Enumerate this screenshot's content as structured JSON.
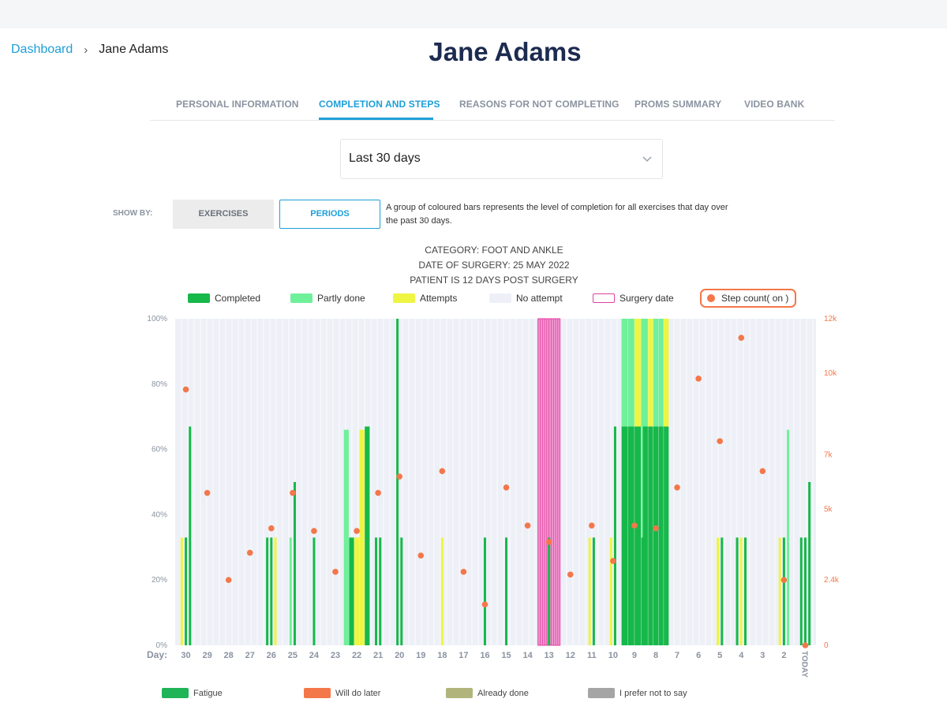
{
  "breadcrumb": {
    "home": "Dashboard",
    "separator": "›",
    "current": "Jane Adams"
  },
  "page_title": "Jane Adams",
  "tabs": [
    {
      "label": "PERSONAL INFORMATION",
      "active": false
    },
    {
      "label": "COMPLETION AND STEPS",
      "active": true
    },
    {
      "label": "REASONS FOR NOT COMPLETING",
      "active": false
    },
    {
      "label": "PROMS SUMMARY",
      "active": false
    },
    {
      "label": "VIDEO BANK",
      "active": false
    }
  ],
  "period_select": {
    "value": "Last 30 days",
    "icon": "chevron-down-icon"
  },
  "show_by": {
    "label": "SHOW BY:",
    "exercises_label": "EXERCISES",
    "periods_label": "PERIODS",
    "selected": "PERIODS",
    "description": "A group of coloured bars represents the level of completion for all exercises that day over the past 30 days."
  },
  "patient_info": {
    "category": "CATEGORY: FOOT AND ANKLE",
    "surgery_date": "DATE OF SURGERY: 25 MAY 2022",
    "post_surgery": "PATIENT IS 12 DAYS POST SURGERY"
  },
  "legend": {
    "completed": "Completed",
    "partly_done": "Partly done",
    "attempts": "Attempts",
    "no_attempt": "No attempt",
    "surgery_date": "Surgery date",
    "step_count": "Step count( on )"
  },
  "colors": {
    "completed": "#16b84a",
    "partly_done": "#6ff09a",
    "attempts": "#eef542",
    "no_attempt": "#eef0f7",
    "surgery": "#e23fa0",
    "surgery_fill": "#f099d0",
    "step": "#f4774a",
    "accent": "#1e9fd8",
    "title": "#1c2b4f"
  },
  "chart_data": {
    "type": "bar",
    "y_left": {
      "ylim": [
        0,
        100
      ],
      "ticks": [
        "0%",
        "20%",
        "40%",
        "60%",
        "80%",
        "100%"
      ]
    },
    "y_right": {
      "ylim": [
        0,
        12000
      ],
      "tick_values": [
        0,
        2400,
        5000,
        7000,
        10000,
        12000
      ],
      "ticks": [
        "0",
        "2.4k",
        "5k",
        "7k",
        "10k",
        "12k"
      ]
    },
    "x_label": "Day:",
    "days": [
      "30",
      "29",
      "28",
      "27",
      "26",
      "25",
      "24",
      "23",
      "22",
      "21",
      "20",
      "19",
      "18",
      "17",
      "16",
      "15",
      "14",
      "13",
      "12",
      "11",
      "10",
      "9",
      "8",
      "7",
      "6",
      "5",
      "4",
      "3",
      "2",
      "TODAY"
    ],
    "surgery_day": "13",
    "bars": [
      [
        {
          "s": "attempts",
          "v": 33
        },
        {
          "s": "completed",
          "v": 33
        },
        {
          "s": "completed",
          "v": 67
        }
      ],
      [],
      [],
      [],
      [
        {
          "s": "completed",
          "v": 33
        },
        {
          "s": "completed",
          "v": 33
        },
        {
          "s": "attempts",
          "v": 33
        }
      ],
      [
        {
          "s": "partly",
          "v": 33
        },
        {
          "s": "completed",
          "v": 50
        }
      ],
      [
        {
          "s": "completed",
          "v": 33
        }
      ],
      [],
      [
        {
          "s": "partly",
          "v": 66
        },
        {
          "s": "completed",
          "v": 33
        },
        {
          "s": "attempts",
          "v": 33
        },
        {
          "s": "attempts",
          "v": 66
        },
        {
          "s": "completed",
          "v": 67
        }
      ],
      [
        {
          "s": "completed",
          "v": 33
        },
        {
          "s": "completed",
          "v": 33
        }
      ],
      [
        {
          "s": "completed",
          "v": 100
        },
        {
          "s": "completed",
          "v": 33
        }
      ],
      [],
      [
        {
          "s": "attempts",
          "v": 33
        }
      ],
      [],
      [
        {
          "s": "completed",
          "v": 33
        }
      ],
      [
        {
          "s": "completed",
          "v": 33
        }
      ],
      [],
      [
        {
          "s": "completed",
          "v": 33
        }
      ],
      [],
      [
        {
          "s": "attempts",
          "v": 33
        },
        {
          "s": "completed",
          "v": 33
        }
      ],
      [
        {
          "s": "attempts",
          "v": 33
        },
        {
          "s": "completed",
          "v": 67
        }
      ],
      [
        {
          "s": "completed",
          "v": 67,
          "top": "partly",
          "tv": 100
        },
        {
          "s": "completed",
          "v": 67,
          "top": "partly",
          "tv": 100
        },
        {
          "s": "completed",
          "v": 67,
          "top": "attempts",
          "tv": 100
        },
        {
          "s": "completed",
          "v": 33,
          "top": "partly",
          "tv": 100
        }
      ],
      [
        {
          "s": "completed",
          "v": 67,
          "top": "partly",
          "tv": 100
        },
        {
          "s": "completed",
          "v": 67,
          "top": "attempts",
          "tv": 100
        },
        {
          "s": "completed",
          "v": 67,
          "top": "partly",
          "tv": 100
        },
        {
          "s": "completed",
          "v": 67,
          "top": "partly",
          "tv": 100
        },
        {
          "s": "completed",
          "v": 67,
          "top": "attempts",
          "tv": 100
        }
      ],
      [],
      [],
      [
        {
          "s": "attempts",
          "v": 33
        },
        {
          "s": "completed",
          "v": 33
        }
      ],
      [
        {
          "s": "completed",
          "v": 33
        },
        {
          "s": "attempts",
          "v": 33
        },
        {
          "s": "completed",
          "v": 33
        }
      ],
      [],
      [
        {
          "s": "attempts",
          "v": 33
        },
        {
          "s": "completed",
          "v": 33
        },
        {
          "s": "partly",
          "v": 66
        }
      ],
      [
        {
          "s": "completed",
          "v": 33
        },
        {
          "s": "completed",
          "v": 33
        },
        {
          "s": "completed",
          "v": 50
        }
      ]
    ],
    "steps": [
      9400,
      5600,
      2400,
      3400,
      4300,
      5600,
      4200,
      2700,
      4200,
      5600,
      6200,
      3300,
      6400,
      2700,
      1500,
      5800,
      4400,
      3800,
      2600,
      4400,
      3100,
      4400,
      4300,
      5800,
      9800,
      7500,
      11300,
      6400,
      2400,
      0
    ]
  },
  "bottom_legend": [
    {
      "label": "Fatigue",
      "color": "#1fb457"
    },
    {
      "label": "Will do later",
      "color": "#f4774a"
    },
    {
      "label": "Already done",
      "color": "#b1b57c"
    },
    {
      "label": "I prefer not to say",
      "color": "#a5a5a5"
    }
  ]
}
